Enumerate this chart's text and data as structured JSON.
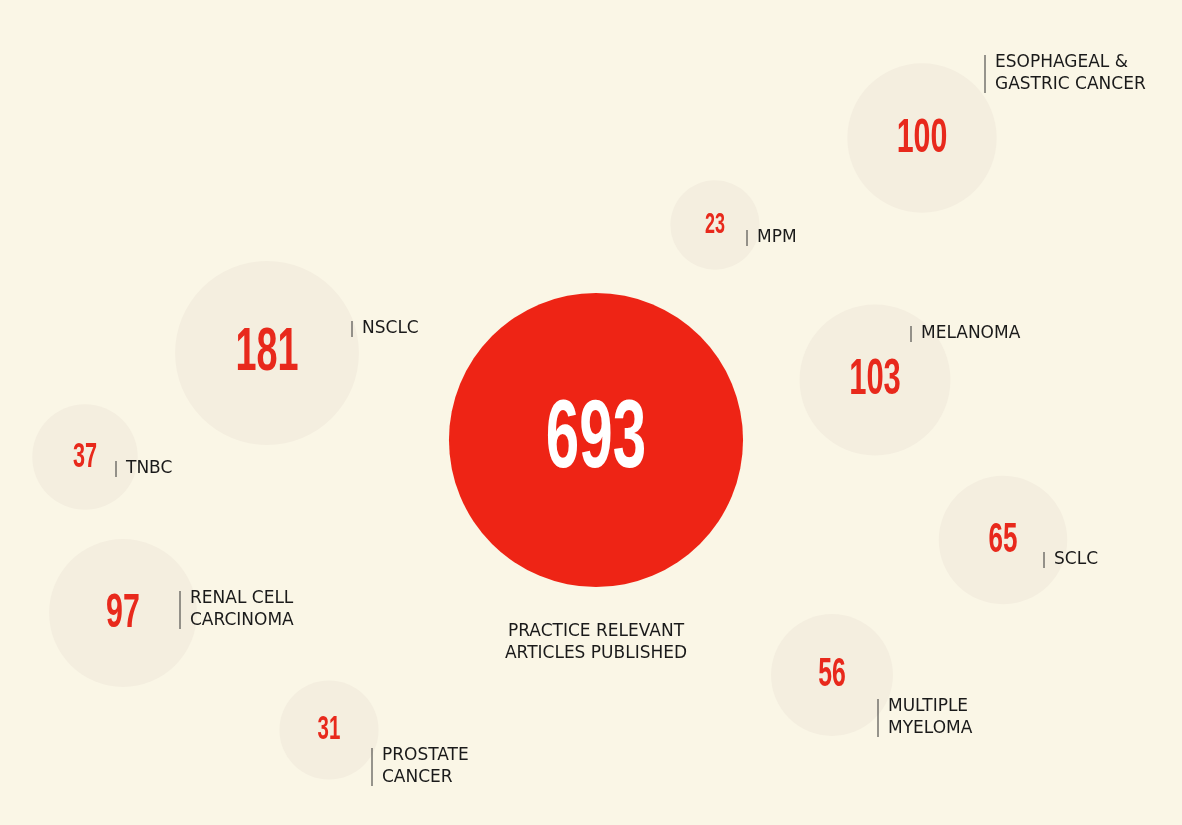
{
  "chart_data": {
    "type": "other",
    "categories": [
      "ESOPHAGEAL & GASTRIC CANCER",
      "MPM",
      "NSCLC",
      "MELANOMA",
      "TNBC",
      "SCLC",
      "RENAL CELL CARCINOMA",
      "MULTIPLE MYELOMA",
      "PROSTATE CANCER",
      "PRACTICE RELEVANT ARTICLES PUBLISHED"
    ],
    "values": [
      100,
      23,
      181,
      103,
      37,
      65,
      97,
      56,
      31,
      693
    ],
    "colors": [
      "#f4eedf",
      "#f4eedf",
      "#f4eedf",
      "#f4eedf",
      "#f4eedf",
      "#f4eedf",
      "#f4eedf",
      "#f4eedf",
      "#f4eedf",
      "#ee2415"
    ],
    "data_labels": true
  }
}
